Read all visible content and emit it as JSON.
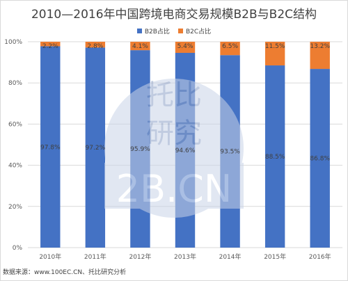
{
  "chart_data": {
    "type": "bar",
    "stacked": true,
    "percent": true,
    "title": "2010—2016年中国跨境电商交易规模B2B与B2C结构",
    "categories": [
      "2010年",
      "2011年",
      "2012年",
      "2013年",
      "2014年",
      "2015年",
      "2016年"
    ],
    "series": [
      {
        "name": "B2B占比",
        "color": "#4472c4",
        "values": [
          97.8,
          97.2,
          95.9,
          94.6,
          93.5,
          88.5,
          86.8
        ],
        "labels": [
          "97.8%",
          "97.2%",
          "95.9%",
          "94.6%",
          "93.5%",
          "88.5%",
          "86.8%"
        ]
      },
      {
        "name": "B2C占比",
        "color": "#ed7d31",
        "values": [
          2.2,
          2.8,
          4.1,
          5.4,
          6.5,
          11.5,
          13.2
        ],
        "labels": [
          "2.2%",
          "2.8%",
          "4.1%",
          "5.4%",
          "6.5%",
          "11.5%",
          "13.2%"
        ]
      }
    ],
    "ylim": [
      0,
      100
    ],
    "yticks": [
      "0%",
      "20%",
      "40%",
      "60%",
      "80%",
      "100%"
    ],
    "grid": true,
    "legend": "top"
  },
  "watermark": {
    "line1": "托比",
    "line2": "研究",
    "domain": "2B.CN"
  },
  "source_text": "数据来源：www.100EC.CN、托比研究分析",
  "colors": {
    "grid": "#d9d9d9",
    "axis_text": "#595959",
    "label_text": "#404040",
    "watermark": "#8ea2c8"
  }
}
